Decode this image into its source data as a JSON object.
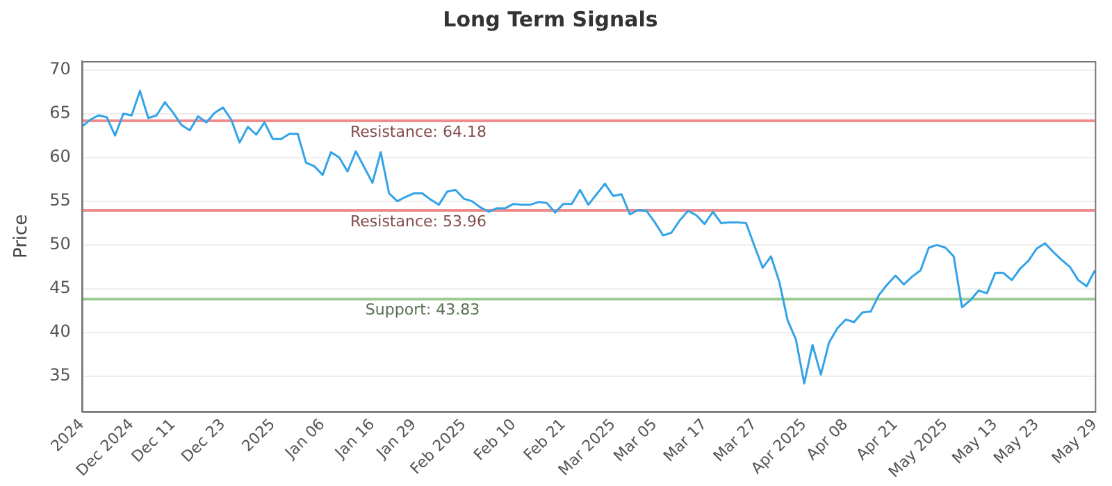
{
  "chart_data": {
    "type": "line",
    "title": "Long Term Signals",
    "ylabel": "Price",
    "categories": [
      "2024",
      null,
      null,
      null,
      null,
      null,
      "Dec 2024",
      null,
      null,
      null,
      null,
      "Dec 11",
      null,
      null,
      null,
      null,
      null,
      "Dec 23",
      null,
      null,
      null,
      null,
      null,
      "2025",
      null,
      null,
      null,
      null,
      null,
      "Jan 06",
      null,
      null,
      null,
      null,
      null,
      "Jan 16",
      null,
      null,
      null,
      null,
      "Jan 29",
      null,
      null,
      null,
      null,
      null,
      "Feb 2025",
      null,
      null,
      null,
      null,
      null,
      "Feb 10",
      null,
      null,
      null,
      null,
      null,
      "Feb 21",
      null,
      null,
      null,
      null,
      null,
      "Mar 2025",
      null,
      null,
      null,
      null,
      "Mar 05",
      null,
      null,
      null,
      null,
      null,
      "Mar 17",
      null,
      null,
      null,
      null,
      null,
      "Mar 27",
      null,
      null,
      null,
      null,
      null,
      "Apr 2025",
      null,
      null,
      null,
      null,
      "Apr 08",
      null,
      null,
      null,
      null,
      null,
      "Apr 21",
      null,
      null,
      null,
      null,
      null,
      "May 2025",
      null,
      null,
      null,
      null,
      null,
      "May 13",
      null,
      null,
      null,
      null,
      "May 23",
      null,
      null,
      null,
      null,
      null,
      null,
      "May 29"
    ],
    "series": [
      {
        "color": "#33a3e8",
        "values": [
          63.5,
          64.3,
          64.8,
          64.6,
          62.5,
          65.0,
          64.8,
          67.6,
          64.5,
          64.8,
          66.3,
          65.1,
          63.7,
          63.1,
          64.7,
          64.0,
          65.1,
          65.7,
          64.3,
          61.7,
          63.5,
          62.6,
          64.0,
          62.1,
          62.1,
          62.7,
          62.7,
          59.4,
          59.0,
          58.0,
          60.6,
          60.0,
          58.4,
          60.7,
          58.9,
          57.1,
          60.6,
          55.9,
          55.0,
          55.5,
          55.9,
          55.9,
          55.2,
          54.6,
          56.1,
          56.3,
          55.3,
          55.0,
          54.3,
          53.8,
          54.2,
          54.2,
          54.7,
          54.6,
          54.6,
          54.9,
          54.8,
          53.7,
          54.7,
          54.7,
          56.3,
          54.6,
          55.8,
          57.0,
          55.6,
          55.8,
          53.5,
          54.0,
          53.9,
          52.6,
          51.1,
          51.4,
          52.8,
          53.9,
          53.4,
          52.4,
          53.8,
          52.5,
          52.6,
          52.6,
          52.5,
          49.9,
          47.4,
          48.7,
          45.8,
          41.4,
          39.2,
          34.2,
          38.6,
          35.2,
          38.9,
          40.5,
          41.5,
          41.2,
          42.3,
          42.4,
          44.3,
          45.5,
          46.5,
          45.5,
          46.4,
          47.1,
          49.7,
          50.0,
          49.7,
          48.7,
          42.9,
          43.7,
          44.8,
          44.5,
          46.8,
          46.8,
          46.0,
          47.3,
          48.2,
          49.6,
          50.2,
          49.2,
          48.3,
          47.5,
          46.0,
          45.3,
          47.1
        ]
      }
    ],
    "ylim": [
      31,
      71
    ],
    "yticks": [
      35,
      40,
      45,
      50,
      55,
      60,
      65,
      70
    ],
    "grid": "y",
    "marker": "none",
    "legend": false,
    "ref_lines": [
      {
        "axis": "y",
        "value": 64.18,
        "label": "Resistance: 64.18",
        "color": "#f08c8c"
      },
      {
        "axis": "y",
        "value": 53.96,
        "label": "Resistance: 53.96",
        "color": "#f08c8c"
      },
      {
        "axis": "y",
        "value": 43.83,
        "label": "Support: 43.83",
        "color": "#9ccc94"
      }
    ]
  }
}
